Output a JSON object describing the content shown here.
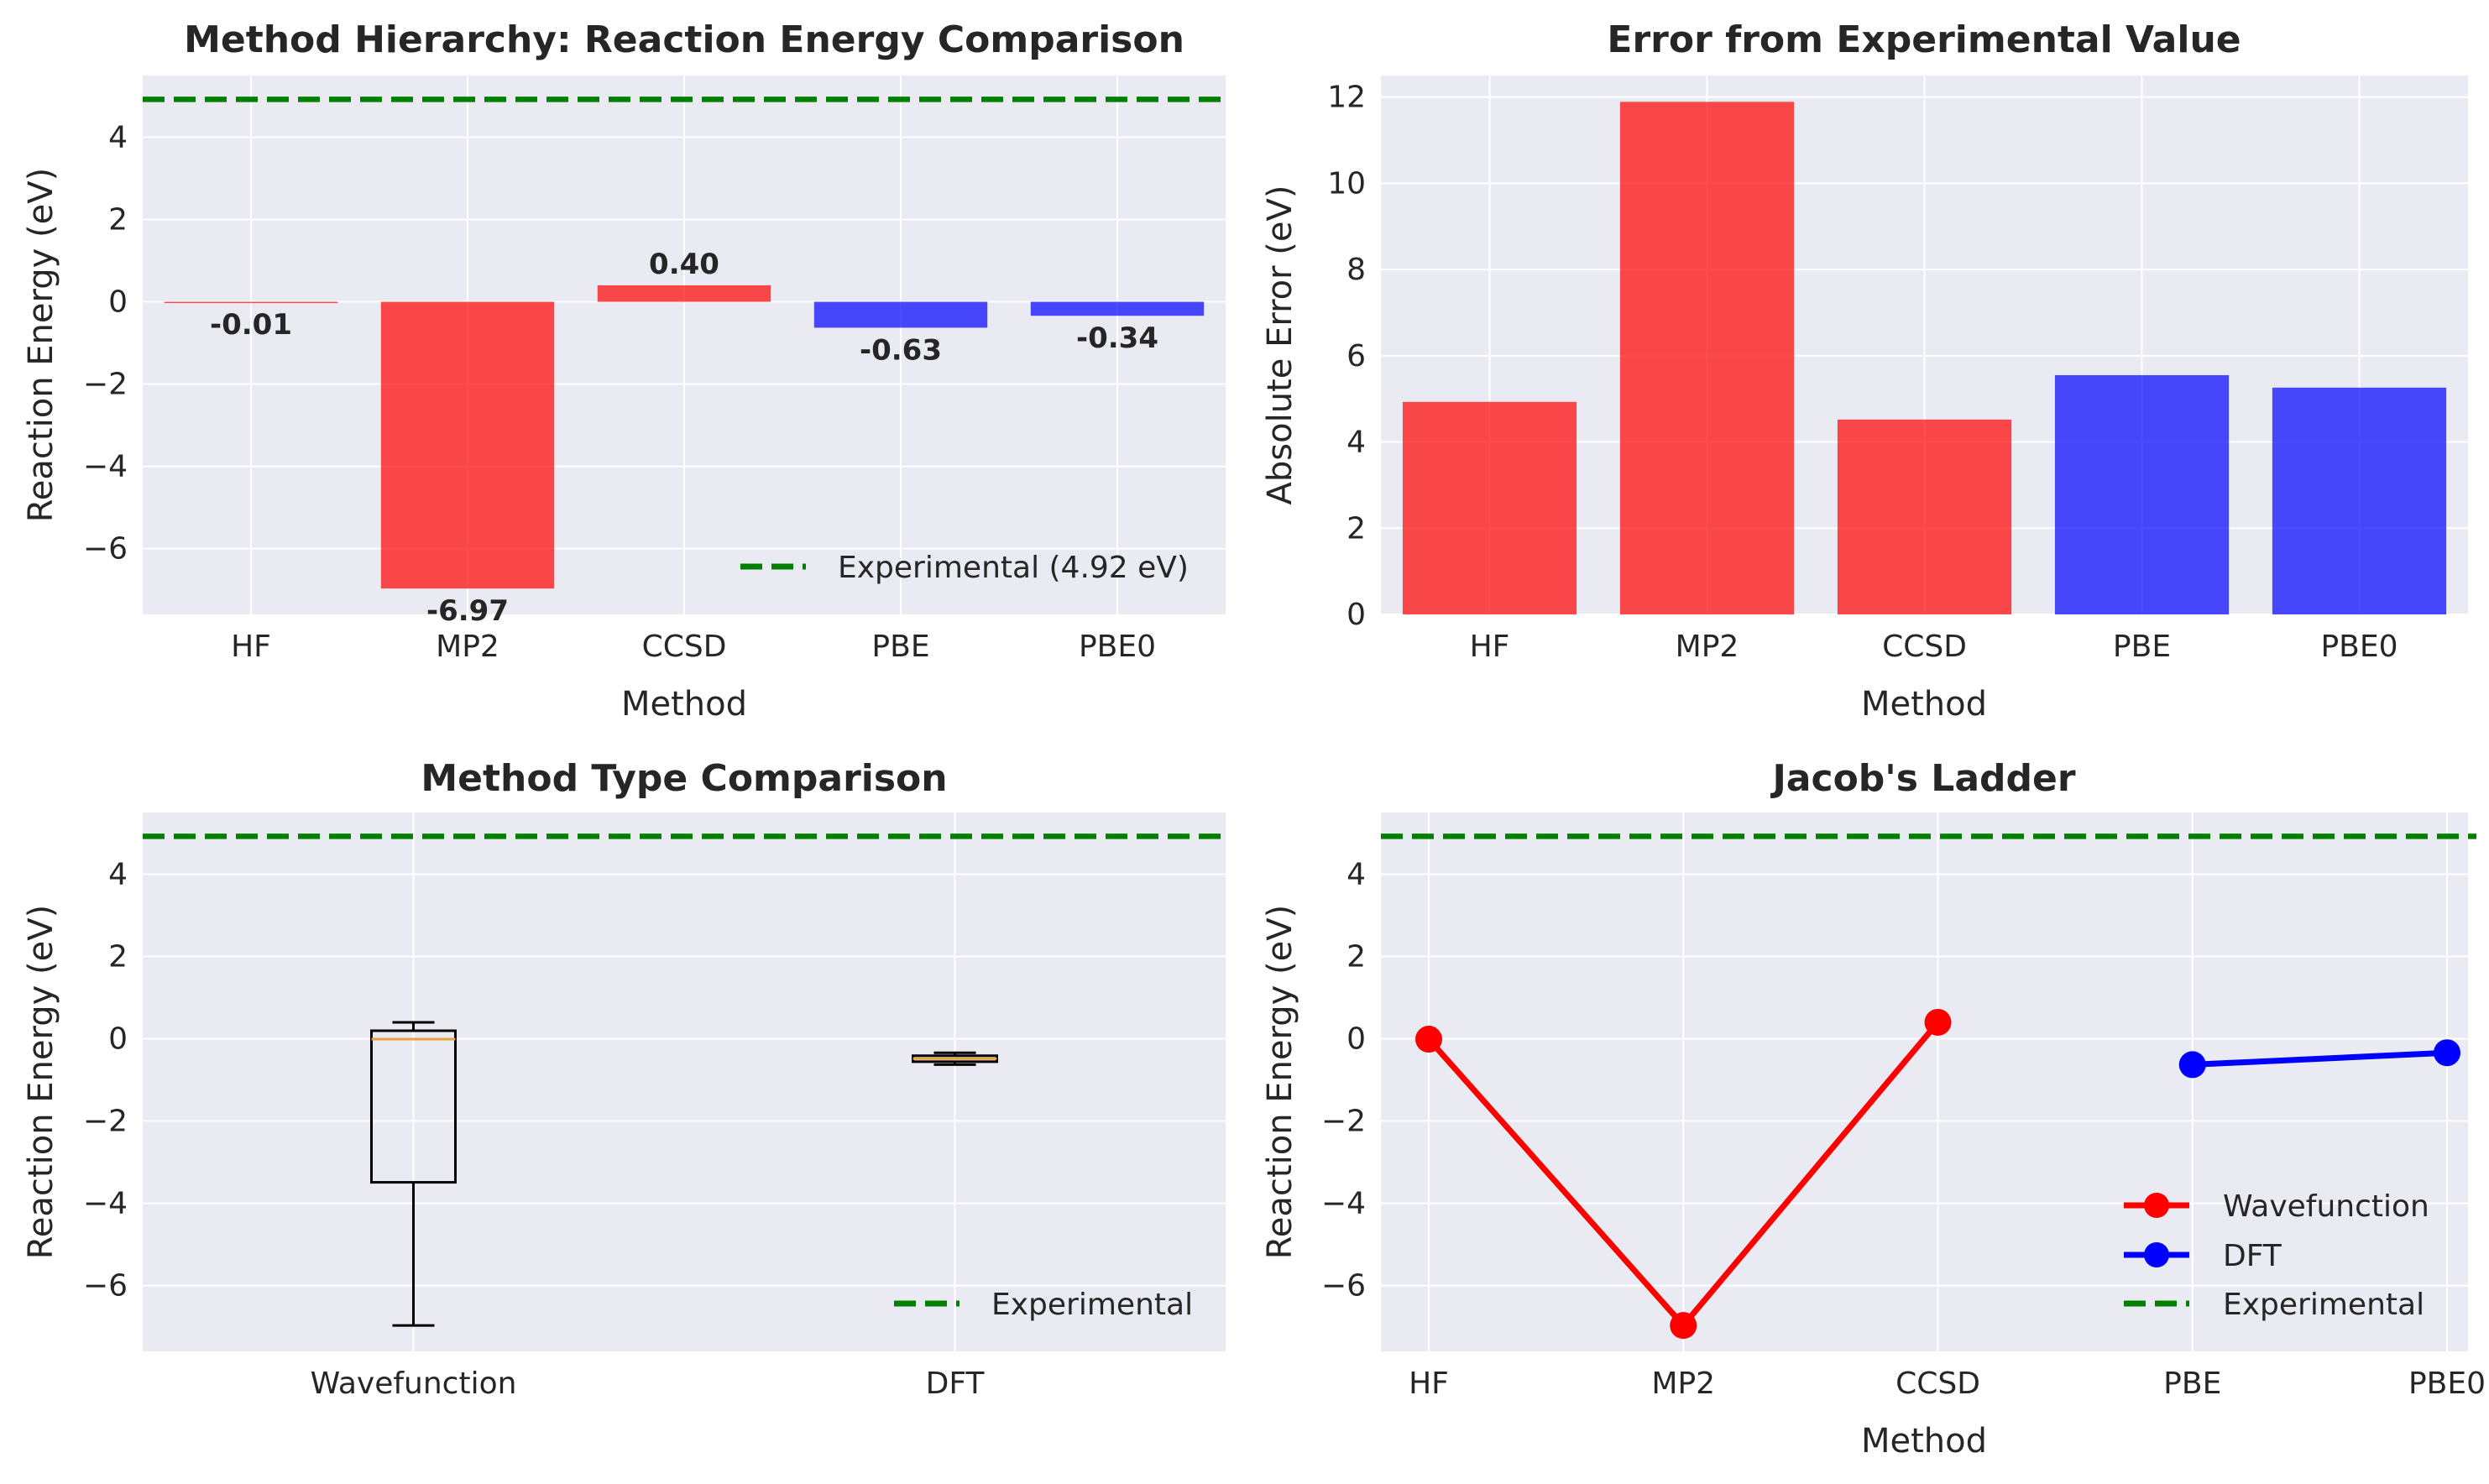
{
  "colors": {
    "background": "#eaeaf2",
    "grid": "#ffffff",
    "wavefunction": "#ff0000",
    "dft": "#0000ff",
    "experimental": "#008000",
    "median": "#e8a33c"
  },
  "chart_data": [
    {
      "id": "hierarchy",
      "type": "bar",
      "title": "Method Hierarchy: Reaction Energy Comparison",
      "xlabel": "Method",
      "ylabel": "Reaction Energy (eV)",
      "categories": [
        "HF",
        "MP2",
        "CCSD",
        "PBE",
        "PBE0"
      ],
      "values": [
        -0.01,
        -6.97,
        0.4,
        -0.63,
        -0.34
      ],
      "value_labels": [
        "-0.01",
        "-6.97",
        "0.40",
        "-0.63",
        "-0.34"
      ],
      "bar_colors": [
        "red",
        "red",
        "red",
        "blue",
        "blue"
      ],
      "ylim": [
        -7.6,
        5.5
      ],
      "yticks": [
        -6,
        -4,
        -2,
        0,
        2,
        4
      ],
      "reference_line": {
        "name": "Experimental (4.92 eV)",
        "value": 4.92,
        "style": "dashed",
        "color": "green"
      },
      "legend_position": "lower-right",
      "grid": true
    },
    {
      "id": "error",
      "type": "bar",
      "title": "Error from Experimental Value",
      "xlabel": "Method",
      "ylabel": "Absolute Error (eV)",
      "categories": [
        "HF",
        "MP2",
        "CCSD",
        "PBE",
        "PBE0"
      ],
      "values": [
        4.93,
        11.89,
        4.52,
        5.55,
        5.26
      ],
      "bar_colors": [
        "red",
        "red",
        "red",
        "blue",
        "blue"
      ],
      "ylim": [
        0,
        12.5
      ],
      "yticks": [
        0,
        2,
        4,
        6,
        8,
        10,
        12
      ],
      "grid": true
    },
    {
      "id": "types",
      "type": "box",
      "title": "Method Type Comparison",
      "xlabel": "",
      "ylabel": "Reaction Energy (eV)",
      "categories": [
        "Wavefunction",
        "DFT"
      ],
      "boxes": [
        {
          "name": "Wavefunction",
          "min": -6.97,
          "q1": -3.49,
          "median": -0.01,
          "q3": 0.195,
          "max": 0.4
        },
        {
          "name": "DFT",
          "min": -0.63,
          "q1": -0.5575,
          "median": -0.485,
          "q3": -0.4125,
          "max": -0.34
        }
      ],
      "ylim": [
        -7.6,
        5.5
      ],
      "yticks": [
        -6,
        -4,
        -2,
        0,
        2,
        4
      ],
      "reference_line": {
        "name": "Experimental",
        "value": 4.92,
        "style": "dashed",
        "color": "green"
      },
      "legend_position": "lower-right",
      "grid": true
    },
    {
      "id": "ladder",
      "type": "line",
      "title": "Jacob's Ladder",
      "xlabel": "Method",
      "ylabel": "Reaction Energy (eV)",
      "categories": [
        "HF",
        "MP2",
        "CCSD",
        "PBE",
        "PBE0"
      ],
      "series": [
        {
          "name": "Wavefunction",
          "color": "red",
          "x": [
            "HF",
            "MP2",
            "CCSD"
          ],
          "values": [
            -0.01,
            -6.97,
            0.4
          ]
        },
        {
          "name": "DFT",
          "color": "blue",
          "x": [
            "PBE",
            "PBE0"
          ],
          "values": [
            -0.63,
            -0.34
          ]
        }
      ],
      "ylim": [
        -7.6,
        5.5
      ],
      "yticks": [
        -6,
        -4,
        -2,
        0,
        2,
        4
      ],
      "reference_line": {
        "name": "Experimental",
        "value": 4.92,
        "style": "dashed",
        "color": "green"
      },
      "legend_position": "lower-right",
      "grid": true
    }
  ]
}
